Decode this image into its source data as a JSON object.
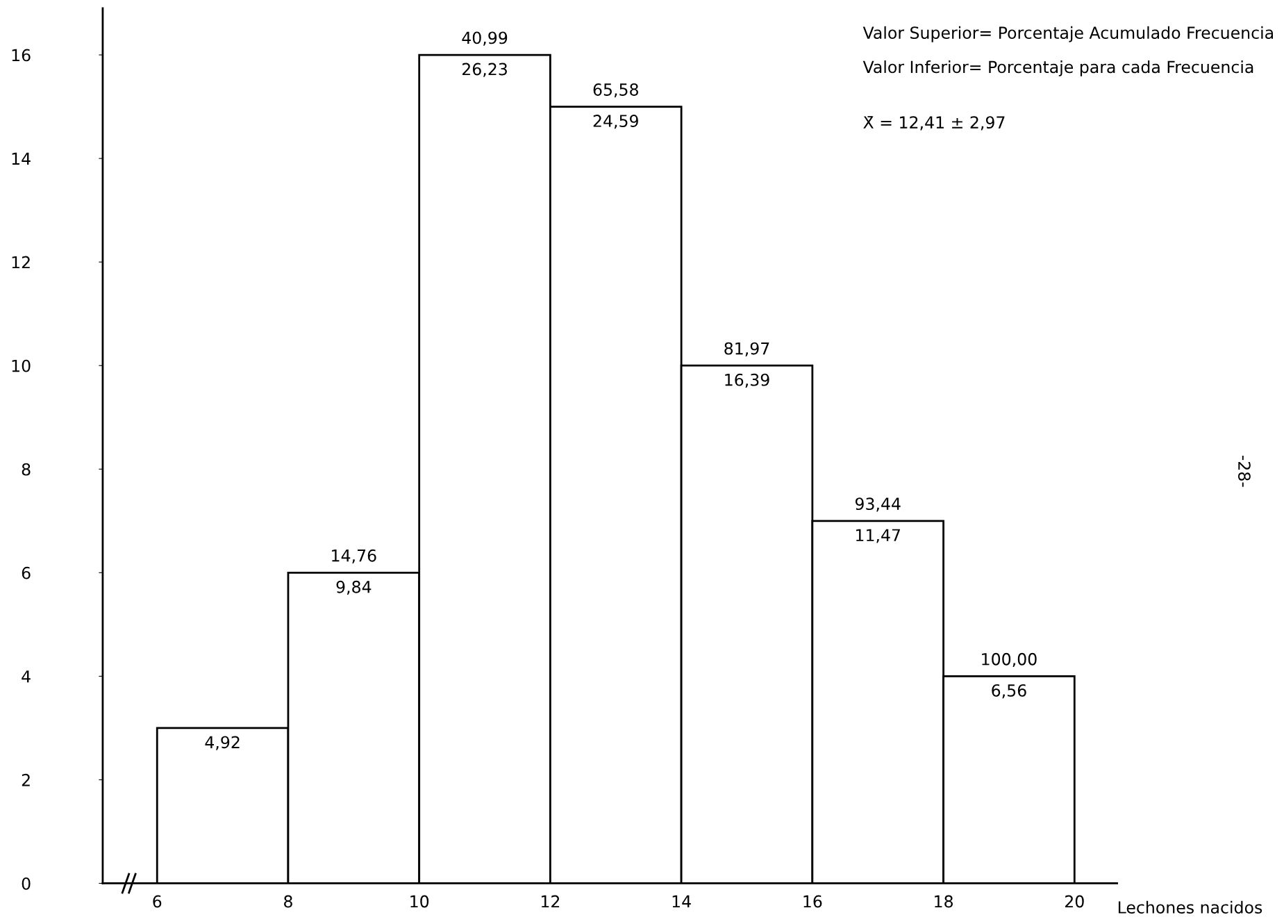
{
  "chart_data": {
    "type": "histogram",
    "bins": [
      6,
      8,
      10,
      12,
      14,
      16,
      18,
      20
    ],
    "values": [
      3,
      6,
      16,
      15,
      10,
      7,
      4
    ],
    "color": "#ffffff",
    "xlabel": "Lechones nacidos",
    "xlim": [
      5.17,
      20.65
    ],
    "xticks": [
      6,
      8,
      10,
      12,
      14,
      16,
      18,
      20
    ],
    "ylim": [
      0,
      16.9
    ],
    "yticks": [
      0,
      2,
      4,
      6,
      8,
      10,
      12,
      14,
      16
    ],
    "grid": false,
    "annotations": [
      "Valor Superior= Porcentaje Acumulado Frecuencia",
      "Valor Inferior= Porcentaje para cada Frecuencia",
      "X̄ = 12,41 ± 2,97",
      "-28-",
      {
        "text": "14,76",
        "x": 9,
        "y": 6
      },
      {
        "text": "40,99",
        "x": 11,
        "y": 16
      },
      {
        "text": "65,58",
        "x": 13,
        "y": 15
      },
      {
        "text": "81,97",
        "x": 15,
        "y": 10
      },
      {
        "text": "93,44",
        "x": 17,
        "y": 7
      },
      {
        "text": "100,00",
        "x": 19,
        "y": 4
      },
      {
        "text": "4,92",
        "x": 7,
        "y": 3
      },
      {
        "text": "9,84",
        "x": 9,
        "y": 6
      },
      {
        "text": "26,23",
        "x": 11,
        "y": 16
      },
      {
        "text": "24,59",
        "x": 13,
        "y": 15
      },
      {
        "text": "16,39",
        "x": 15,
        "y": 10
      },
      {
        "text": "11,47",
        "x": 17,
        "y": 7
      },
      {
        "text": "6,56",
        "x": 19,
        "y": 4
      }
    ]
  }
}
